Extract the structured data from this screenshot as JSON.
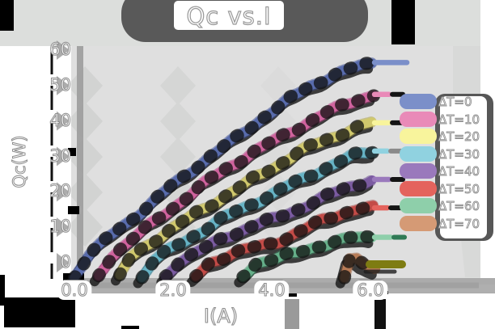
{
  "title": "Qc vs.I",
  "axes": {
    "x_label": "I(A)",
    "y_label": "Qc(W)",
    "x_ticks": [
      "0.0",
      "2.0",
      "4.0",
      "6.0"
    ],
    "y_ticks": [
      "0",
      "10",
      "20",
      "30",
      "40",
      "50",
      "60"
    ]
  },
  "legend": {
    "items": [
      {
        "label": "ΔT=0",
        "color": "#7b8fc9"
      },
      {
        "label": "ΔT=10",
        "color": "#e98ab8"
      },
      {
        "label": "ΔT=20",
        "color": "#f8f49c"
      },
      {
        "label": "ΔT=30",
        "color": "#90d2e0"
      },
      {
        "label": "ΔT=40",
        "color": "#9a79bc"
      },
      {
        "label": "ΔT=50",
        "color": "#e4635d"
      },
      {
        "label": "ΔT=60",
        "color": "#8ecfaa"
      },
      {
        "label": "ΔT=70",
        "color": "#d59a75"
      }
    ]
  },
  "style": {
    "canvas_bg": "#dcdedc",
    "plot_bg": "#dfdfdf",
    "margin_bg": "#ffffff",
    "grid_color": "#d2d3d2",
    "spine_gray": "#a0a0a0",
    "band_gray": "#ababab",
    "shadow_dark": "#191919",
    "title_blob_gray": "#595959",
    "text_color": "#ffffff",
    "text_stroke": "#8f8f8f",
    "artifact_olive": "#7e7c12"
  },
  "chart_data": {
    "type": "line",
    "title": "Qc vs.I",
    "xlabel": "I(A)",
    "ylabel": "Qc(W)",
    "xlim": [
      0,
      8.5
    ],
    "ylim": [
      -4,
      61
    ],
    "x_tick_values": [
      0.0,
      2.0,
      4.0,
      6.0
    ],
    "y_tick_values": [
      0,
      10,
      20,
      30,
      40,
      50,
      60
    ],
    "grid": "faint",
    "legend_position": "center right",
    "style_note": "xkcd hand-drawn style, thick bands with error-bar ticks and dark drop shadows",
    "series": [
      {
        "name": "ΔT=0",
        "color": "#7b8fc9",
        "dark": "#36488f",
        "tail": 40,
        "tail_dash": null,
        "points": [
          [
            0.02,
            -4
          ],
          [
            0.3,
            2.5
          ],
          [
            0.8,
            8.5
          ],
          [
            1.3,
            14
          ],
          [
            1.8,
            19.5
          ],
          [
            2.3,
            25
          ],
          [
            2.8,
            30.5
          ],
          [
            3.3,
            35.5
          ],
          [
            3.8,
            41
          ],
          [
            4.3,
            45.5
          ],
          [
            4.8,
            50
          ],
          [
            5.3,
            53
          ],
          [
            5.8,
            55.5
          ],
          [
            6.05,
            56.5
          ]
        ]
      },
      {
        "name": "ΔT=10",
        "color": "#e98ab8",
        "dark": "#b53a82",
        "tail": 18,
        "tail_dash": "#141414",
        "points": [
          [
            0.5,
            -4
          ],
          [
            0.78,
            2
          ],
          [
            1.2,
            7
          ],
          [
            1.7,
            12.5
          ],
          [
            2.2,
            18
          ],
          [
            2.7,
            23
          ],
          [
            3.2,
            27.5
          ],
          [
            3.7,
            31.5
          ],
          [
            4.2,
            35.5
          ],
          [
            4.7,
            39.5
          ],
          [
            5.2,
            43
          ],
          [
            5.7,
            46
          ],
          [
            6.05,
            47.5
          ]
        ]
      },
      {
        "name": "ΔT=20",
        "color": "#f8f49c",
        "dark": "#a79b3c",
        "tail": 18,
        "tail_dash": "#141414",
        "points": [
          [
            0.9,
            -4
          ],
          [
            1.15,
            1.5
          ],
          [
            1.6,
            6
          ],
          [
            2.1,
            10.5
          ],
          [
            2.6,
            15
          ],
          [
            3.1,
            19.5
          ],
          [
            3.6,
            23.5
          ],
          [
            4.1,
            27.5
          ],
          [
            4.6,
            31.5
          ],
          [
            5.1,
            34.5
          ],
          [
            5.6,
            37.5
          ],
          [
            6.05,
            39.5
          ]
        ]
      },
      {
        "name": "ΔT=30",
        "color": "#90d2e0",
        "dark": "#3b93a9",
        "tail": 16,
        "tail_dash": "#8a8a8a",
        "points": [
          [
            1.35,
            -4
          ],
          [
            1.6,
            1
          ],
          [
            2.1,
            5
          ],
          [
            2.6,
            9
          ],
          [
            3.1,
            13
          ],
          [
            3.6,
            16.5
          ],
          [
            4.1,
            20
          ],
          [
            4.6,
            23.5
          ],
          [
            5.1,
            27
          ],
          [
            5.6,
            30
          ],
          [
            6.05,
            31.5
          ]
        ]
      },
      {
        "name": "ΔT=40",
        "color": "#9a79bc",
        "dark": "#5c3d86",
        "tail": 18,
        "tail_dash": "#141414",
        "points": [
          [
            1.85,
            -4
          ],
          [
            2.1,
            0.5
          ],
          [
            2.6,
            4
          ],
          [
            3.1,
            7.5
          ],
          [
            3.6,
            10.5
          ],
          [
            4.1,
            12.5
          ],
          [
            4.6,
            15.5
          ],
          [
            5.1,
            18.5
          ],
          [
            5.6,
            21.5
          ],
          [
            6.05,
            23.5
          ]
        ]
      },
      {
        "name": "ΔT=50",
        "color": "#e4635d",
        "dark": "#a23331",
        "tail": 16,
        "tail_dash": "#141414",
        "points": [
          [
            2.48,
            -4
          ],
          [
            2.75,
            0
          ],
          [
            3.2,
            2.5
          ],
          [
            3.7,
            4.5
          ],
          [
            4.1,
            6
          ],
          [
            4.6,
            9
          ],
          [
            5.0,
            12
          ],
          [
            5.4,
            14
          ],
          [
            5.75,
            15.2
          ],
          [
            6.05,
            15.5
          ]
        ]
      },
      {
        "name": "ΔT=60",
        "color": "#8ecfaa",
        "dark": "#3c9068",
        "tail": 20,
        "tail_dash": "#2f7a55",
        "points": [
          [
            3.42,
            -4
          ],
          [
            3.7,
            0
          ],
          [
            4.1,
            1.2
          ],
          [
            4.5,
            2.5
          ],
          [
            4.9,
            4.5
          ],
          [
            5.3,
            6
          ],
          [
            5.7,
            7
          ],
          [
            6.05,
            7.2
          ]
        ]
      },
      {
        "name": "ΔT=70",
        "color": "#d59a75",
        "dark": "#9a5c38",
        "tail": 0,
        "tail_dash": null,
        "points": [
          [
            5.45,
            -4.5
          ],
          [
            5.58,
            1.5
          ],
          [
            5.72,
            1.8
          ],
          [
            5.85,
            0
          ],
          [
            6.0,
            -1
          ],
          [
            6.1,
            -1.5
          ]
        ]
      }
    ]
  }
}
